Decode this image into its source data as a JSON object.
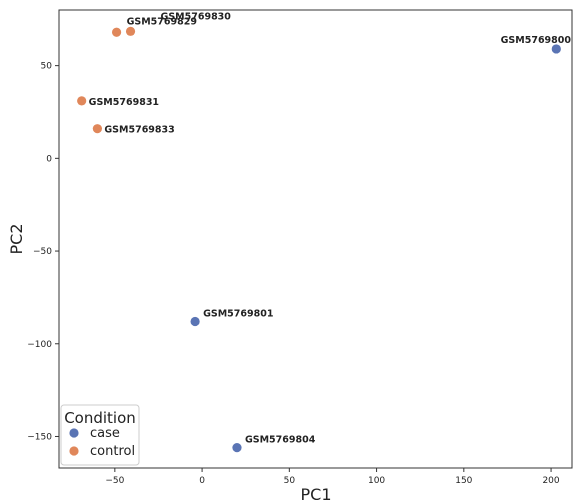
{
  "chart_data": {
    "type": "scatter",
    "xlabel": "PC1",
    "ylabel": "PC2",
    "xlim": [
      -82,
      212
    ],
    "ylim": [
      -167,
      80
    ],
    "xticks": [
      -50,
      0,
      50,
      100,
      150,
      200
    ],
    "yticks": [
      50,
      0,
      -50,
      -100,
      -150
    ],
    "xtick_labels": [
      "−50",
      "0",
      "50",
      "100",
      "150",
      "200"
    ],
    "ytick_labels": [
      "50",
      "0",
      "−50",
      "−100",
      "−150"
    ],
    "grid": false,
    "legend": {
      "title": "Condition",
      "position": "bottom-left",
      "entries": [
        {
          "label": "case",
          "color": "#5a74b4"
        },
        {
          "label": "control",
          "color": "#e0875a"
        }
      ]
    },
    "points": [
      {
        "label": "GSM5769829",
        "x": -49,
        "y": 68,
        "condition": "control"
      },
      {
        "label": "GSM5769830",
        "x": -41,
        "y": 68.5,
        "condition": "control"
      },
      {
        "label": "GSM5769831",
        "x": -69,
        "y": 31,
        "condition": "control"
      },
      {
        "label": "GSM5769833",
        "x": -60,
        "y": 16,
        "condition": "control"
      },
      {
        "label": "GSM5769800",
        "x": 203,
        "y": 59,
        "condition": "case"
      },
      {
        "label": "GSM5769801",
        "x": -4,
        "y": -88,
        "condition": "case"
      },
      {
        "label": "GSM5769804",
        "x": 20,
        "y": -156,
        "condition": "case"
      }
    ]
  }
}
